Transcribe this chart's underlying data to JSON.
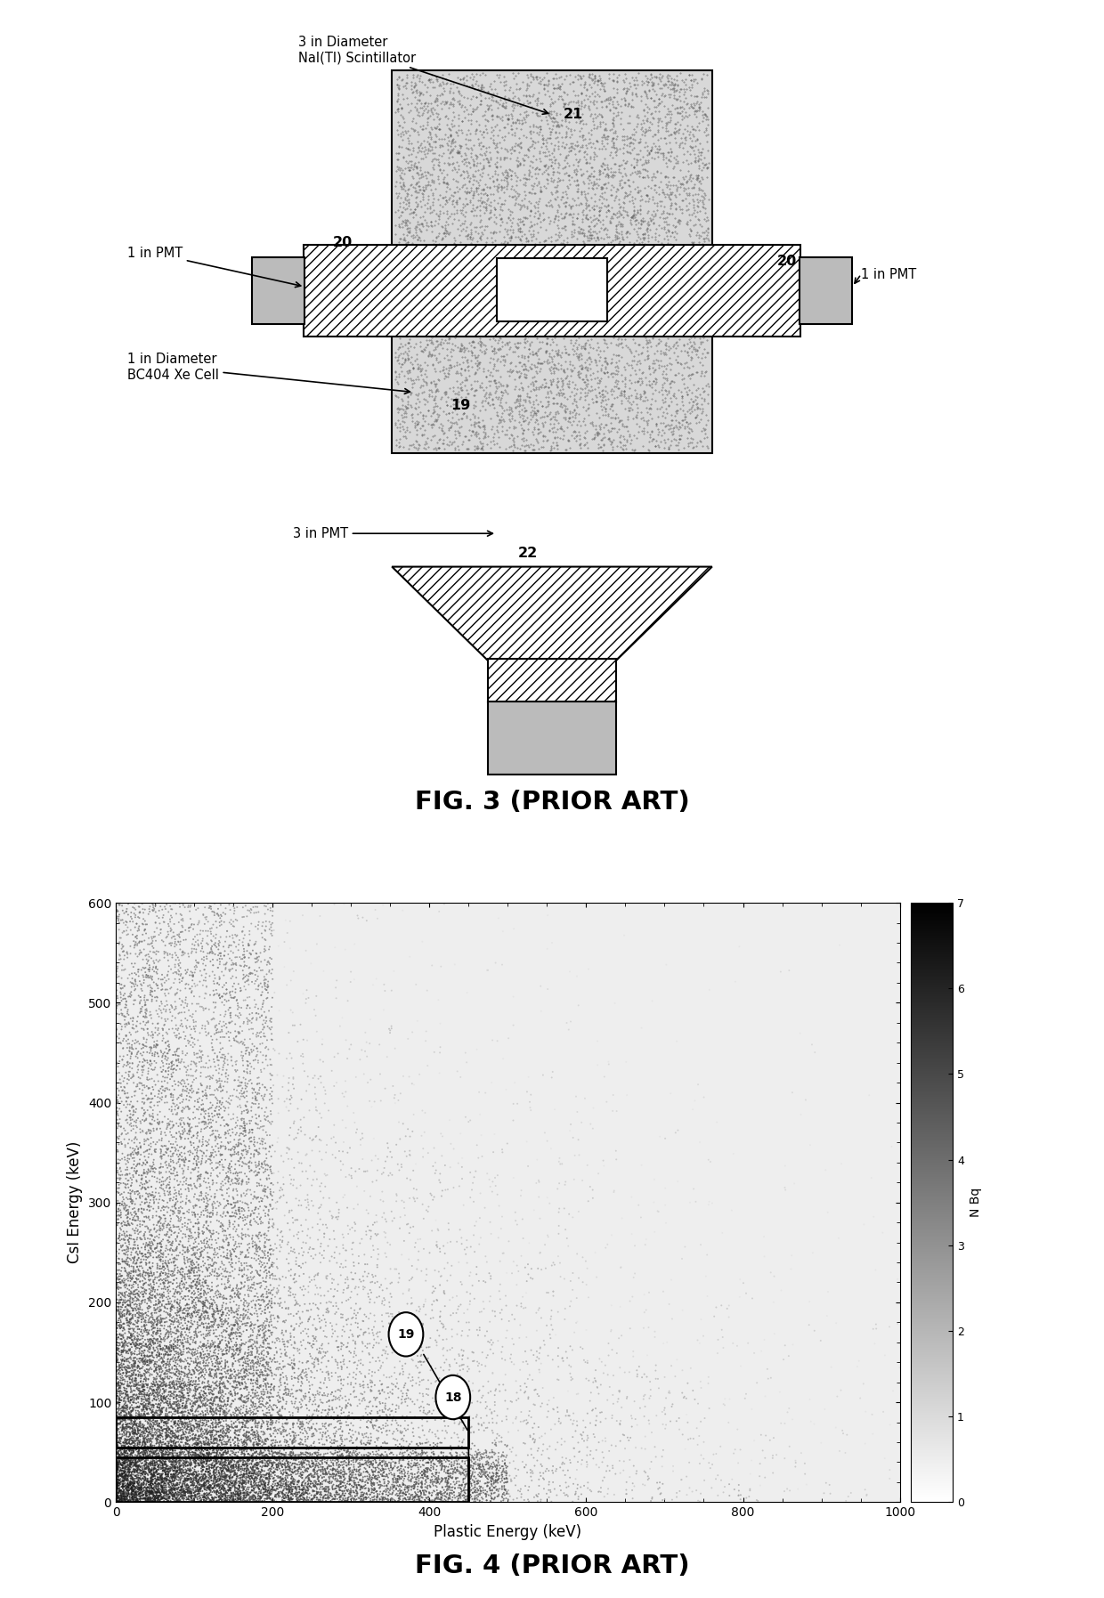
{
  "fig3_title": "FIG. 3 (PRIOR ART)",
  "fig4_title": "FIG. 4 (PRIOR ART)",
  "fig4_xlabel": "Plastic Energy (keV)",
  "fig4_ylabel": "CsI Energy (keV)",
  "fig4_colorbar_label": "N Bq",
  "fig4_xlim": [
    0,
    1000
  ],
  "fig4_ylim": [
    0,
    600
  ],
  "fig4_xticks": [
    0,
    200,
    400,
    600,
    800,
    1000
  ],
  "fig4_yticks": [
    0,
    100,
    200,
    300,
    400,
    500,
    600
  ],
  "background_color": "#ffffff",
  "np_seed": 42
}
